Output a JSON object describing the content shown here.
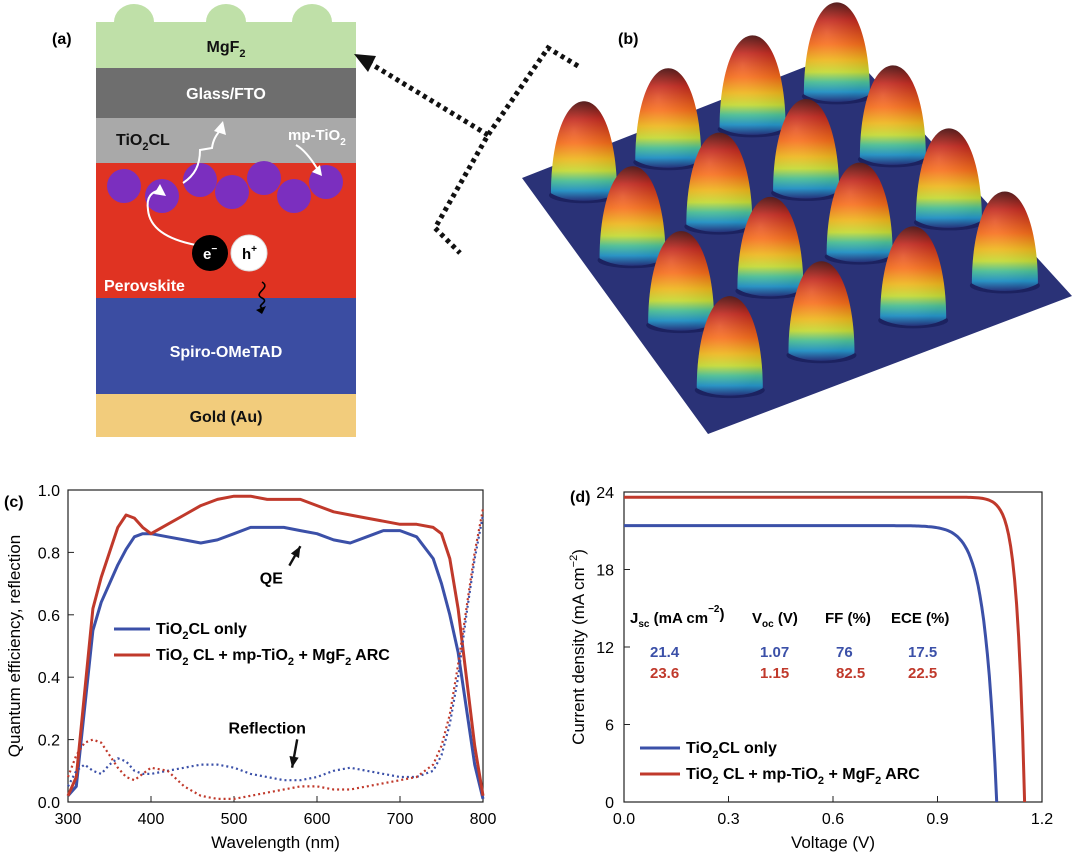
{
  "panel_labels": {
    "a": "(a)",
    "b": "(b)",
    "c": "(c)",
    "d": "(d)"
  },
  "device": {
    "layers": [
      {
        "name": "MgF",
        "sub": "2",
        "color": "#bfe0a8"
      },
      {
        "name": "Glass/FTO",
        "sub": "",
        "color": "#6e6e6e"
      },
      {
        "name": "TiO",
        "sub": "2",
        "tail": "CL",
        "color": "#a9a9a9"
      },
      {
        "name": "Perovskite",
        "sub": "",
        "color": "#e03322"
      },
      {
        "name": "Spiro-OMeTAD",
        "sub": "",
        "color": "#3b4da2"
      },
      {
        "name": "Gold (Au)",
        "sub": "",
        "color": "#f2cc7c"
      }
    ],
    "mp_label": "mp-TiO",
    "mp_sub": "2",
    "electron": "e",
    "electron_sup": "−",
    "hole": "h",
    "hole_sup": "+",
    "particle_color": "#7b2fbf"
  },
  "chart_data": [
    {
      "type": "line",
      "panel": "(c)",
      "title": "",
      "xlabel": "Wavelength (nm)",
      "ylabel": "Quantum efficiency, reflection",
      "xlim": [
        300,
        800
      ],
      "ylim": [
        0.0,
        1.0
      ],
      "xticks": [
        "300",
        "400",
        "500",
        "600",
        "700",
        "800"
      ],
      "yticks": [
        "0.0",
        "0.2",
        "0.4",
        "0.6",
        "0.8",
        "1.0"
      ],
      "x": [
        300,
        310,
        320,
        330,
        340,
        350,
        360,
        370,
        380,
        390,
        400,
        420,
        440,
        460,
        480,
        500,
        520,
        540,
        560,
        580,
        600,
        620,
        640,
        660,
        680,
        700,
        720,
        740,
        750,
        760,
        770,
        780,
        790,
        800
      ],
      "series": [
        {
          "name": "TiO2CL only",
          "kind": "QE",
          "color": "#3b50a8",
          "values": [
            0.02,
            0.05,
            0.3,
            0.55,
            0.64,
            0.7,
            0.76,
            0.81,
            0.85,
            0.86,
            0.86,
            0.85,
            0.84,
            0.83,
            0.84,
            0.86,
            0.88,
            0.88,
            0.88,
            0.87,
            0.86,
            0.84,
            0.83,
            0.85,
            0.87,
            0.87,
            0.85,
            0.78,
            0.7,
            0.6,
            0.48,
            0.3,
            0.12,
            0.01
          ]
        },
        {
          "name": "TiO2 CL + mp-TiO2 + MgF2 ARC",
          "kind": "QE",
          "color": "#c0392b",
          "values": [
            0.02,
            0.08,
            0.35,
            0.62,
            0.72,
            0.8,
            0.88,
            0.92,
            0.91,
            0.88,
            0.86,
            0.89,
            0.92,
            0.95,
            0.97,
            0.98,
            0.98,
            0.97,
            0.97,
            0.97,
            0.95,
            0.93,
            0.92,
            0.91,
            0.9,
            0.89,
            0.89,
            0.88,
            0.86,
            0.78,
            0.62,
            0.4,
            0.18,
            0.02
          ]
        },
        {
          "name": "TiO2CL only",
          "kind": "Reflection",
          "color": "#3b50a8",
          "dashed": true,
          "values": [
            0.05,
            0.1,
            0.12,
            0.1,
            0.09,
            0.12,
            0.14,
            0.13,
            0.1,
            0.09,
            0.09,
            0.1,
            0.11,
            0.12,
            0.12,
            0.11,
            0.09,
            0.08,
            0.07,
            0.07,
            0.08,
            0.1,
            0.11,
            0.1,
            0.09,
            0.08,
            0.08,
            0.1,
            0.15,
            0.25,
            0.4,
            0.6,
            0.78,
            0.92
          ]
        },
        {
          "name": "TiO2 CL + mp-TiO2 + MgF2 ARC",
          "kind": "Reflection",
          "color": "#c0392b",
          "dashed": true,
          "values": [
            0.08,
            0.15,
            0.19,
            0.2,
            0.19,
            0.15,
            0.11,
            0.08,
            0.07,
            0.09,
            0.11,
            0.1,
            0.05,
            0.02,
            0.01,
            0.01,
            0.02,
            0.03,
            0.04,
            0.05,
            0.05,
            0.04,
            0.04,
            0.05,
            0.06,
            0.07,
            0.08,
            0.12,
            0.18,
            0.28,
            0.44,
            0.62,
            0.8,
            0.94
          ]
        }
      ],
      "annotations": [
        {
          "text": "QE",
          "at": [
            545,
            0.7
          ],
          "arrow_to": [
            580,
            0.82
          ]
        },
        {
          "text": "Reflection",
          "at": [
            540,
            0.22
          ],
          "arrow_to": [
            570,
            0.11
          ]
        }
      ],
      "legend": {
        "placement": "center-left",
        "items": [
          {
            "text": "TiO2CL only",
            "parts": [
              [
                "TiO",
                ""
              ],
              [
                "2",
                "sub"
              ],
              [
                "CL only",
                ""
              ]
            ],
            "color": "#3b50a8"
          },
          {
            "text": "TiO2 CL + mp-TiO2 + MgF2 ARC",
            "parts": [
              [
                "TiO",
                ""
              ],
              [
                "2",
                "sub"
              ],
              [
                " CL + mp-TiO",
                ""
              ],
              [
                "2",
                "sub"
              ],
              [
                " + MgF",
                ""
              ],
              [
                "2",
                "sub"
              ],
              [
                " ARC",
                ""
              ]
            ],
            "color": "#c0392b"
          }
        ]
      },
      "grid": false
    },
    {
      "type": "line",
      "panel": "(d)",
      "title": "",
      "xlabel": "Voltage (V)",
      "ylabel": "Current density (mA cm",
      "ylabel_sup": "−2",
      "ylabel_tail": ")",
      "xlim": [
        0.0,
        1.2
      ],
      "ylim": [
        0,
        24
      ],
      "xticks": [
        "0.0",
        "0.3",
        "0.6",
        "0.9",
        "1.2"
      ],
      "yticks": [
        "0",
        "6",
        "12",
        "18",
        "24"
      ],
      "series": [
        {
          "name": "TiO2CL only",
          "color": "#3b50a8",
          "jsc": 21.4,
          "voc": 1.07
        },
        {
          "name": "TiO2 CL + mp-TiO2 + MgF2 ARC",
          "color": "#c0392b",
          "jsc": 23.6,
          "voc": 1.15
        }
      ],
      "table": {
        "headers": [
          "J",
          "sc",
          " (mA cm",
          "−2",
          ")",
          "V",
          "oc",
          " (V)",
          "FF (%)",
          "ECE (%)"
        ],
        "header_text": [
          "Jsc (mA cm−2)",
          "Voc (V)",
          "FF (%)",
          "ECE (%)"
        ],
        "rows": [
          {
            "color": "#3b50a8",
            "cells": [
              "21.4",
              "1.07",
              "76",
              "17.5"
            ]
          },
          {
            "color": "#c0392b",
            "cells": [
              "23.6",
              "1.15",
              "82.5",
              "22.5"
            ]
          }
        ]
      },
      "legend": {
        "placement": "bottom-left",
        "items": [
          {
            "text": "TiO2CL only",
            "parts": [
              [
                "TiO",
                ""
              ],
              [
                "2",
                "sub"
              ],
              [
                "CL only",
                ""
              ]
            ],
            "color": "#3b50a8"
          },
          {
            "text": "TiO2 CL + mp-TiO2 + MgF2 ARC",
            "parts": [
              [
                "TiO",
                ""
              ],
              [
                "2",
                "sub"
              ],
              [
                " CL + mp-TiO",
                ""
              ],
              [
                "2",
                "sub"
              ],
              [
                " + MgF",
                ""
              ],
              [
                "2",
                "sub"
              ],
              [
                " ARC",
                ""
              ]
            ],
            "color": "#c0392b"
          }
        ]
      },
      "grid": false
    }
  ]
}
